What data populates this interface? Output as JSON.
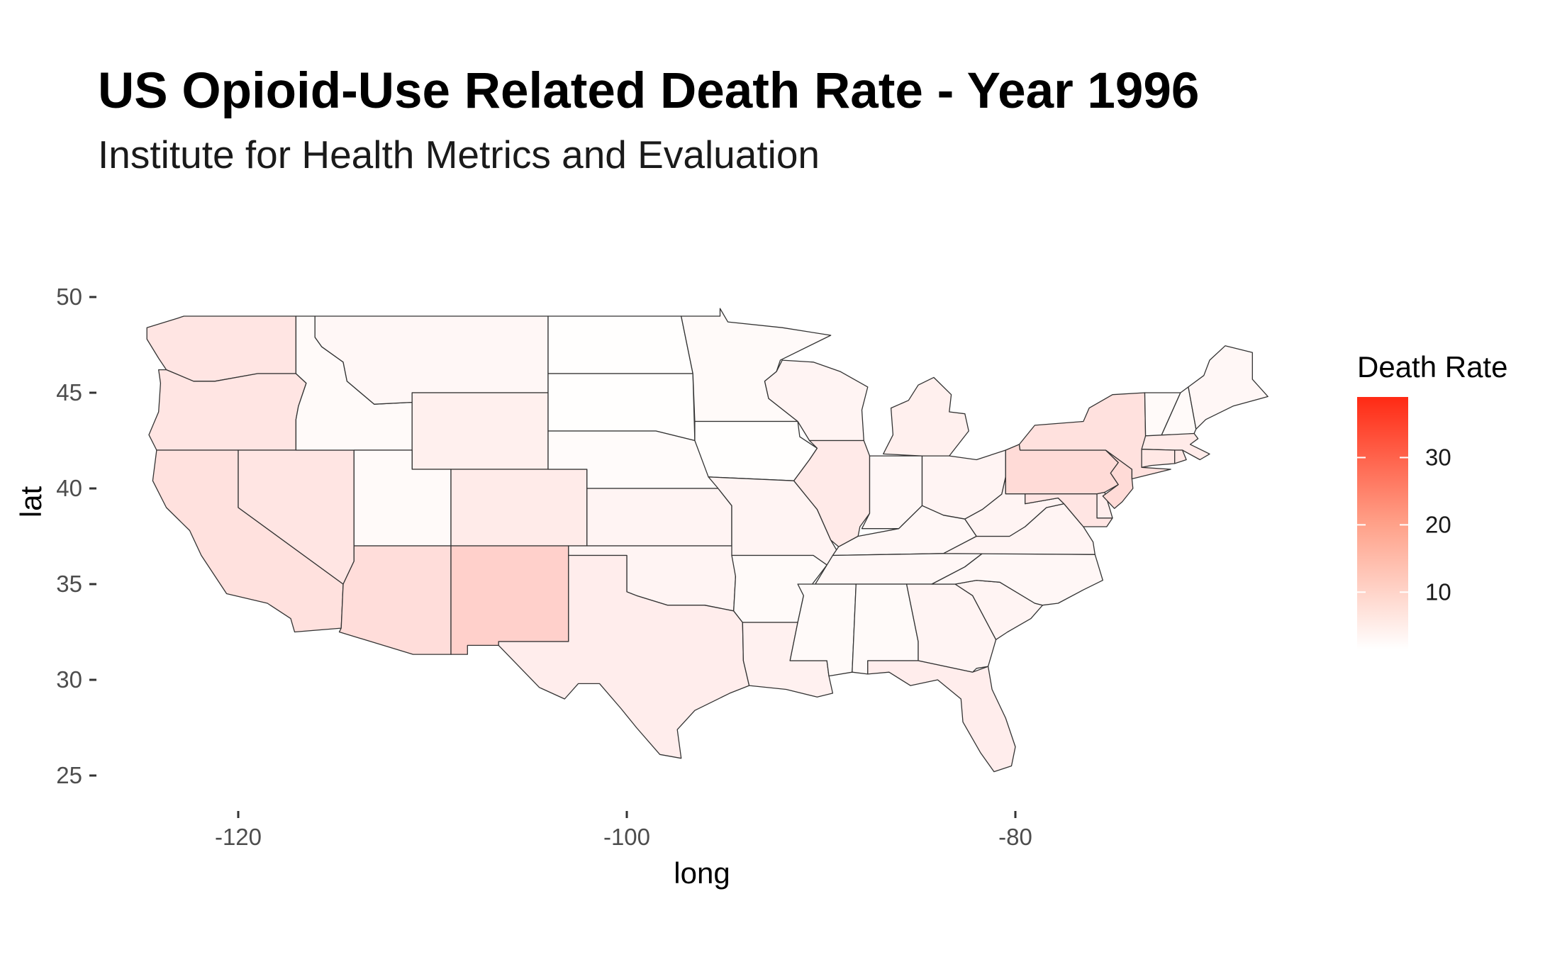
{
  "title": "US Opioid-Use Related Death Rate - Year 1996",
  "subtitle": "Institute for Health Metrics and Evaluation",
  "chart_data": {
    "type": "choropleth",
    "title": "US Opioid-Use Related Death Rate - Year 1996",
    "subtitle": "Institute for Health Metrics and Evaluation",
    "xlabel": "long",
    "ylabel": "lat",
    "x_ticks": [
      -120,
      -100,
      -80
    ],
    "y_ticks": [
      25,
      30,
      35,
      40,
      45,
      50
    ],
    "xlim": [
      -127,
      -65
    ],
    "ylim": [
      20,
      50.5
    ],
    "grid": false,
    "legend": {
      "title": "Death Rate",
      "position": "right",
      "ticks": [
        10,
        20,
        30
      ],
      "range": [
        1.5,
        39
      ],
      "color_low": "#ffffff",
      "color_high": "#ff2a14"
    },
    "values": {
      "Washington": 4.6,
      "Oregon": 4.6,
      "California": 5.2,
      "Nevada": 4.6,
      "Idaho": 2.0,
      "Montana": 2.3,
      "Wyoming": 3.2,
      "Utah": 2.0,
      "Arizona": 5.8,
      "Colorado": 3.8,
      "New Mexico": 7.8,
      "North Dakota": 1.6,
      "South Dakota": 1.6,
      "Nebraska": 1.9,
      "Kansas": 2.6,
      "Oklahoma": 2.6,
      "Texas": 3.5,
      "Minnesota": 2.0,
      "Iowa": 1.6,
      "Missouri": 2.6,
      "Arkansas": 2.0,
      "Louisiana": 3.0,
      "Wisconsin": 2.6,
      "Illinois": 3.9,
      "Michigan": 3.2,
      "Indiana": 2.3,
      "Ohio": 2.6,
      "Kentucky": 2.3,
      "Tennessee": 2.3,
      "Mississippi": 2.0,
      "Alabama": 2.0,
      "Georgia": 2.6,
      "Florida": 3.5,
      "South Carolina": 2.6,
      "North Carolina": 2.3,
      "Virginia": 2.6,
      "West Virginia": 2.6,
      "Maryland": 4.6,
      "Delaware": 3.5,
      "Pennsylvania": 6.2,
      "New Jersey": 6.2,
      "New York": 5.2,
      "Connecticut": 4.3,
      "Rhode Island": 4.3,
      "Massachusetts": 3.8,
      "Vermont": 2.0,
      "New Hampshire": 2.0,
      "Maine": 2.3
    }
  }
}
